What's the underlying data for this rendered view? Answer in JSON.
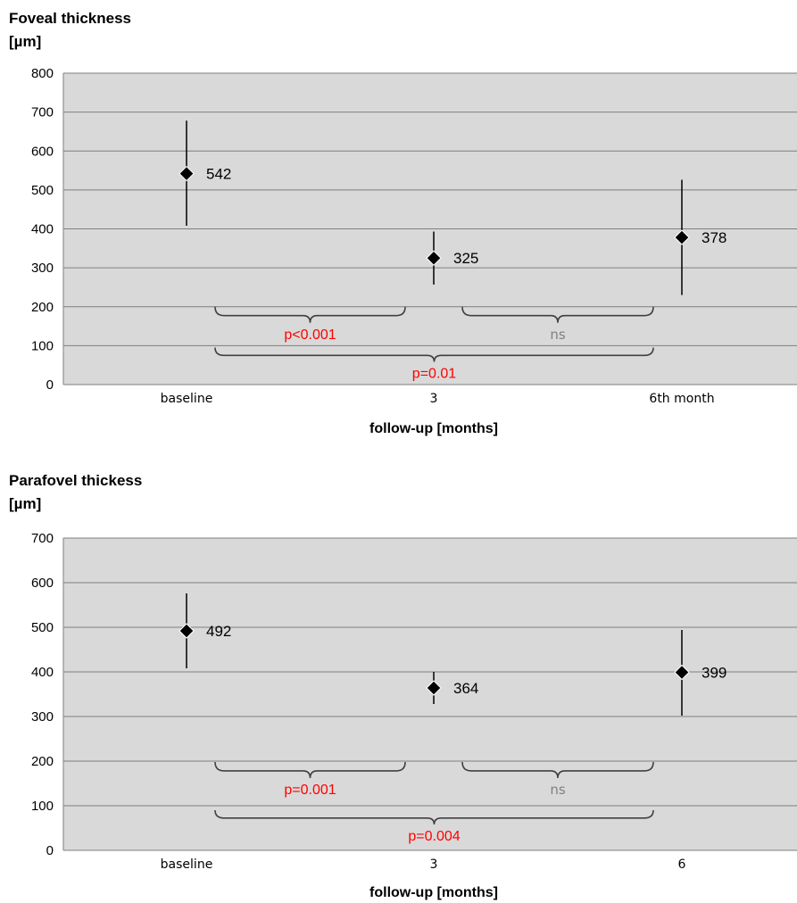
{
  "chart_data": [
    {
      "type": "scatter",
      "ylabel": [
        "Foveal thickness",
        "[µm]"
      ],
      "xlabel": "follow-up [months]",
      "categories": [
        "baseline",
        "3",
        "6th month"
      ],
      "ylim": [
        0,
        800
      ],
      "yticks": [
        0,
        100,
        200,
        300,
        400,
        500,
        600,
        700,
        800
      ],
      "grid": true,
      "legend": "none",
      "series": [
        {
          "values": [
            542,
            325,
            378
          ],
          "labels": [
            "542",
            "325",
            "378"
          ],
          "error_low": [
            408,
            257,
            230
          ],
          "error_high": [
            678,
            393,
            526
          ]
        }
      ],
      "annotations": [
        {
          "from": 0,
          "to": 1,
          "level": 200,
          "text": "p<0.001",
          "color": "#ff0000"
        },
        {
          "from": 1,
          "to": 2,
          "level": 200,
          "text": "ns",
          "color": "#808080"
        },
        {
          "from": 0,
          "to": 2,
          "level": 95,
          "text": "p=0.01",
          "color": "#ff0000"
        }
      ]
    },
    {
      "type": "scatter",
      "ylabel": [
        "Parafovel thickess",
        "[µm]"
      ],
      "xlabel": "follow-up [months]",
      "categories": [
        "baseline",
        "3",
        "6"
      ],
      "ylim": [
        0,
        700
      ],
      "yticks": [
        0,
        100,
        200,
        300,
        400,
        500,
        600,
        700
      ],
      "grid": true,
      "legend": "none",
      "series": [
        {
          "values": [
            492,
            364,
            399
          ],
          "labels": [
            "492",
            "364",
            "399"
          ],
          "error_low": [
            408,
            328,
            302
          ],
          "error_high": [
            576,
            400,
            494
          ]
        }
      ],
      "annotations": [
        {
          "from": 0,
          "to": 1,
          "level": 198,
          "text": "p=0.001",
          "color": "#ff0000"
        },
        {
          "from": 1,
          "to": 2,
          "level": 198,
          "text": "ns",
          "color": "#808080"
        },
        {
          "from": 0,
          "to": 2,
          "level": 90,
          "text": "p=0.004",
          "color": "#ff0000"
        }
      ]
    }
  ]
}
